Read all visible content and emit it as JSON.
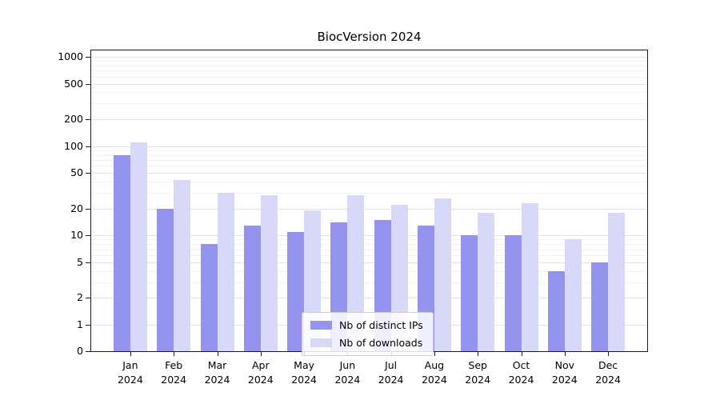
{
  "chart_data": {
    "type": "bar",
    "title": "BiocVersion 2024",
    "year": "2024",
    "months": [
      "Jan",
      "Feb",
      "Mar",
      "Apr",
      "May",
      "Jun",
      "Jul",
      "Aug",
      "Sep",
      "Oct",
      "Nov",
      "Dec"
    ],
    "series": [
      {
        "name": "Nb of distinct IPs",
        "color": "#9494ee",
        "values": [
          80,
          20,
          8,
          13,
          11,
          14,
          15,
          13,
          10,
          10,
          4,
          5
        ]
      },
      {
        "name": "Nb of downloads",
        "color": "#d8d8f8",
        "values": [
          110,
          42,
          30,
          28,
          19,
          28,
          22,
          26,
          18,
          23,
          9,
          18
        ]
      }
    ],
    "yscale": "log",
    "ylim": [
      0,
      1200
    ],
    "yticks": [
      0,
      1,
      2,
      5,
      10,
      20,
      50,
      100,
      200,
      500,
      1000
    ],
    "ytick_labels": [
      "0",
      "1",
      "2",
      "5",
      "10",
      "20",
      "50",
      "100",
      "200",
      "500",
      "1000"
    ],
    "minor_gridlines": [
      3,
      4,
      6,
      7,
      8,
      9,
      30,
      40,
      60,
      70,
      80,
      90,
      300,
      400,
      600,
      700,
      800,
      900
    ],
    "grid": true,
    "legend_position": "lower center"
  },
  "colors": {
    "grid_major": "#e3e3e3",
    "grid_minor": "#f2f2f2",
    "axis": "#1a1a1a",
    "legend_border": "#cccccc",
    "background": "#ffffff"
  }
}
